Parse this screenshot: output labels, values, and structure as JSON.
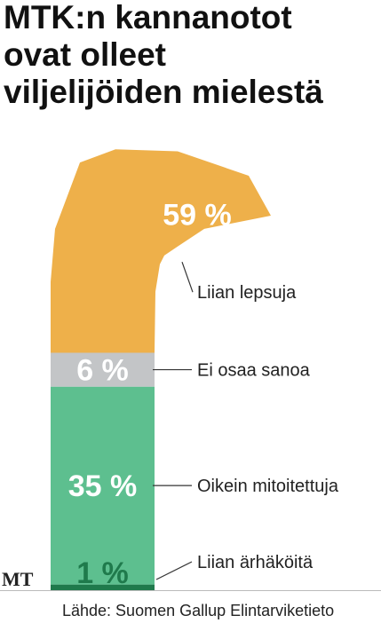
{
  "chart_data": {
    "type": "stacked-figure",
    "title": [
      "MTK:n kannanotot",
      "ovat olleet",
      "viljelijöiden mielestä"
    ],
    "categories": [
      "Liian ärhäköitä",
      "Oikein mitoitettuja",
      "Ei osaa sanoa",
      "Liian lepsuja"
    ],
    "values": [
      1,
      35,
      6,
      59
    ],
    "value_labels": [
      "1 %",
      "35 %",
      "6 %",
      "59 %"
    ],
    "colors": [
      "#1f7a4c",
      "#5dbf8f",
      "#c3c5c7",
      "#eeb04a"
    ],
    "logo": "MT",
    "source": "Lähde: Suomen Gallup Elintarviketieto"
  }
}
